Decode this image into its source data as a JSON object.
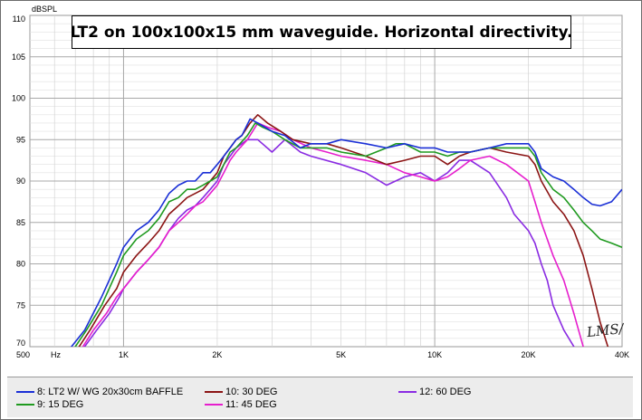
{
  "title": "LT2 on 100x100x15 mm waveguide. Horizontal directivity.",
  "watermark": "LMS/",
  "chart_data": {
    "type": "line",
    "title": "LT2 on 100x100x15 mm waveguide. Horizontal directivity.",
    "xlabel": "Hz",
    "ylabel": "dBSPL",
    "xscale": "log",
    "xlim": [
      500,
      40000
    ],
    "ylim": [
      70,
      110
    ],
    "grid": true,
    "legend_position": "bottom",
    "yticks": [
      {
        "value": 110,
        "label": "110"
      },
      {
        "value": 105,
        "label": "105"
      },
      {
        "value": 100,
        "label": "100"
      },
      {
        "value": 95,
        "label": "95"
      },
      {
        "value": 90,
        "label": "90"
      },
      {
        "value": 85,
        "label": "85"
      },
      {
        "value": 80,
        "label": "80"
      },
      {
        "value": 75,
        "label": "75"
      },
      {
        "value": 70,
        "label": "70"
      }
    ],
    "xticks": [
      {
        "value": 500,
        "label": "500"
      },
      {
        "value": 1000,
        "label": "1K"
      },
      {
        "value": 2000,
        "label": "2K"
      },
      {
        "value": 5000,
        "label": "5K"
      },
      {
        "value": 10000,
        "label": "10K"
      },
      {
        "value": 20000,
        "label": "20K"
      },
      {
        "value": 40000,
        "label": "40K"
      }
    ],
    "series": [
      {
        "name": "8: LT2 W/ WG 20x30cm BAFFLE",
        "color": "#1a2fd6",
        "points": [
          [
            500,
            66
          ],
          [
            680,
            70
          ],
          [
            750,
            72
          ],
          [
            850,
            76
          ],
          [
            950,
            80
          ],
          [
            1000,
            82
          ],
          [
            1100,
            84
          ],
          [
            1200,
            85
          ],
          [
            1300,
            86.5
          ],
          [
            1400,
            88.5
          ],
          [
            1500,
            89.5
          ],
          [
            1600,
            90
          ],
          [
            1700,
            90
          ],
          [
            1800,
            91
          ],
          [
            1900,
            91
          ],
          [
            2000,
            92
          ],
          [
            2100,
            93
          ],
          [
            2200,
            94
          ],
          [
            2300,
            95
          ],
          [
            2400,
            95.5
          ],
          [
            2550,
            97.5
          ],
          [
            2700,
            97
          ],
          [
            3000,
            96
          ],
          [
            3300,
            95.5
          ],
          [
            3700,
            94
          ],
          [
            4000,
            94.5
          ],
          [
            4500,
            94.5
          ],
          [
            5000,
            95
          ],
          [
            6000,
            94.5
          ],
          [
            7000,
            94
          ],
          [
            8000,
            94.5
          ],
          [
            9000,
            94
          ],
          [
            10000,
            94
          ],
          [
            11000,
            93.5
          ],
          [
            12000,
            93.5
          ],
          [
            13000,
            93.5
          ],
          [
            15000,
            94
          ],
          [
            17000,
            94.5
          ],
          [
            20000,
            94.5
          ],
          [
            21000,
            93.5
          ],
          [
            22000,
            91.5
          ],
          [
            24000,
            90.5
          ],
          [
            26000,
            90
          ],
          [
            28000,
            89
          ],
          [
            30000,
            88
          ],
          [
            32000,
            87.2
          ],
          [
            34000,
            87
          ],
          [
            37000,
            87.5
          ],
          [
            40000,
            89
          ]
        ]
      },
      {
        "name": "9: 15 DEG",
        "color": "#1f9a1f",
        "points": [
          [
            500,
            66
          ],
          [
            700,
            70
          ],
          [
            760,
            72
          ],
          [
            850,
            75
          ],
          [
            950,
            79
          ],
          [
            1000,
            81
          ],
          [
            1100,
            83
          ],
          [
            1200,
            84
          ],
          [
            1300,
            85.5
          ],
          [
            1400,
            87.5
          ],
          [
            1500,
            88
          ],
          [
            1600,
            89
          ],
          [
            1700,
            89
          ],
          [
            1800,
            89.5
          ],
          [
            1900,
            90
          ],
          [
            2000,
            90.5
          ],
          [
            2100,
            92
          ],
          [
            2200,
            93.5
          ],
          [
            2300,
            94
          ],
          [
            2500,
            95.5
          ],
          [
            2650,
            97
          ],
          [
            2800,
            96.5
          ],
          [
            3000,
            96
          ],
          [
            3300,
            95
          ],
          [
            3700,
            94
          ],
          [
            4000,
            94
          ],
          [
            4500,
            94
          ],
          [
            5000,
            93.5
          ],
          [
            6000,
            93
          ],
          [
            7000,
            94
          ],
          [
            7500,
            94.5
          ],
          [
            8000,
            94.5
          ],
          [
            9000,
            93.5
          ],
          [
            10000,
            93.5
          ],
          [
            11000,
            93
          ],
          [
            12000,
            93.5
          ],
          [
            13000,
            93.5
          ],
          [
            15000,
            94
          ],
          [
            17000,
            94
          ],
          [
            20000,
            94
          ],
          [
            21000,
            93
          ],
          [
            22000,
            91
          ],
          [
            24000,
            89
          ],
          [
            26000,
            88
          ],
          [
            28000,
            86.5
          ],
          [
            30000,
            85
          ],
          [
            32000,
            84
          ],
          [
            34000,
            83
          ],
          [
            37000,
            82.5
          ],
          [
            40000,
            82
          ]
        ]
      },
      {
        "name": "10: 30 DEG",
        "color": "#8b1414",
        "points": [
          [
            500,
            66
          ],
          [
            720,
            70
          ],
          [
            780,
            72
          ],
          [
            870,
            75
          ],
          [
            950,
            77
          ],
          [
            1000,
            79
          ],
          [
            1100,
            81
          ],
          [
            1200,
            82.5
          ],
          [
            1300,
            84
          ],
          [
            1400,
            86
          ],
          [
            1500,
            87
          ],
          [
            1600,
            88
          ],
          [
            1700,
            88.5
          ],
          [
            1800,
            89
          ],
          [
            1900,
            90
          ],
          [
            2000,
            91
          ],
          [
            2100,
            93
          ],
          [
            2200,
            94
          ],
          [
            2300,
            95
          ],
          [
            2400,
            95.5
          ],
          [
            2550,
            97
          ],
          [
            2700,
            98
          ],
          [
            2900,
            97
          ],
          [
            3200,
            96
          ],
          [
            3500,
            95
          ],
          [
            4000,
            94.5
          ],
          [
            4500,
            94.5
          ],
          [
            5000,
            94
          ],
          [
            6000,
            93
          ],
          [
            7000,
            92
          ],
          [
            8000,
            92.5
          ],
          [
            9000,
            93
          ],
          [
            10000,
            93
          ],
          [
            11000,
            92
          ],
          [
            12000,
            93
          ],
          [
            13000,
            93.5
          ],
          [
            15000,
            94
          ],
          [
            17000,
            93.5
          ],
          [
            20000,
            93
          ],
          [
            21000,
            92
          ],
          [
            22000,
            90
          ],
          [
            24000,
            87.5
          ],
          [
            26000,
            86
          ],
          [
            28000,
            84
          ],
          [
            30000,
            81
          ],
          [
            32000,
            77
          ],
          [
            34000,
            73
          ],
          [
            36000,
            70
          ],
          [
            38000,
            67
          ]
        ]
      },
      {
        "name": "11: 45 DEG",
        "color": "#e61ecd",
        "points": [
          [
            500,
            66
          ],
          [
            740,
            70
          ],
          [
            800,
            72
          ],
          [
            880,
            74
          ],
          [
            950,
            76
          ],
          [
            1000,
            77
          ],
          [
            1100,
            79
          ],
          [
            1200,
            80.5
          ],
          [
            1300,
            82
          ],
          [
            1400,
            84
          ],
          [
            1500,
            85
          ],
          [
            1600,
            86
          ],
          [
            1700,
            87
          ],
          [
            1800,
            87.5
          ],
          [
            1900,
            88.5
          ],
          [
            2000,
            89.5
          ],
          [
            2100,
            91
          ],
          [
            2200,
            92.5
          ],
          [
            2300,
            93.5
          ],
          [
            2500,
            95
          ],
          [
            2700,
            97
          ],
          [
            2900,
            96.5
          ],
          [
            3200,
            96
          ],
          [
            3500,
            95
          ],
          [
            4000,
            94
          ],
          [
            4500,
            93.5
          ],
          [
            5000,
            93
          ],
          [
            6000,
            92.5
          ],
          [
            7000,
            92
          ],
          [
            8000,
            91
          ],
          [
            9000,
            90.5
          ],
          [
            10000,
            90
          ],
          [
            11000,
            90.5
          ],
          [
            12000,
            91.5
          ],
          [
            13000,
            92.5
          ],
          [
            15000,
            93
          ],
          [
            17000,
            92
          ],
          [
            20000,
            90
          ],
          [
            21000,
            87.5
          ],
          [
            22000,
            85
          ],
          [
            24000,
            81
          ],
          [
            26000,
            78
          ],
          [
            28000,
            74
          ],
          [
            30000,
            70
          ],
          [
            32000,
            67
          ]
        ]
      },
      {
        "name": "12: 60 DEG",
        "color": "#8a2be2",
        "points": [
          [
            500,
            66
          ],
          [
            750,
            70
          ],
          [
            820,
            72
          ],
          [
            900,
            74
          ],
          [
            970,
            76
          ],
          [
            1000,
            77
          ],
          [
            1100,
            79
          ],
          [
            1200,
            80.5
          ],
          [
            1300,
            82
          ],
          [
            1400,
            84
          ],
          [
            1500,
            85.5
          ],
          [
            1600,
            86.5
          ],
          [
            1700,
            87
          ],
          [
            1800,
            88
          ],
          [
            1900,
            89
          ],
          [
            2000,
            90
          ],
          [
            2100,
            92
          ],
          [
            2200,
            93
          ],
          [
            2300,
            94
          ],
          [
            2500,
            95
          ],
          [
            2700,
            95
          ],
          [
            3000,
            93.5
          ],
          [
            3300,
            95
          ],
          [
            3700,
            93.5
          ],
          [
            4000,
            93
          ],
          [
            5000,
            92
          ],
          [
            6000,
            91
          ],
          [
            7000,
            89.5
          ],
          [
            8000,
            90.5
          ],
          [
            9000,
            91
          ],
          [
            10000,
            90
          ],
          [
            11000,
            91
          ],
          [
            12000,
            92.5
          ],
          [
            13000,
            92.5
          ],
          [
            15000,
            91
          ],
          [
            17000,
            88
          ],
          [
            18000,
            86
          ],
          [
            20000,
            84
          ],
          [
            21000,
            82.5
          ],
          [
            22000,
            80
          ],
          [
            23000,
            78
          ],
          [
            24000,
            75
          ],
          [
            26000,
            72
          ],
          [
            28000,
            70
          ],
          [
            30000,
            67
          ]
        ]
      }
    ]
  }
}
